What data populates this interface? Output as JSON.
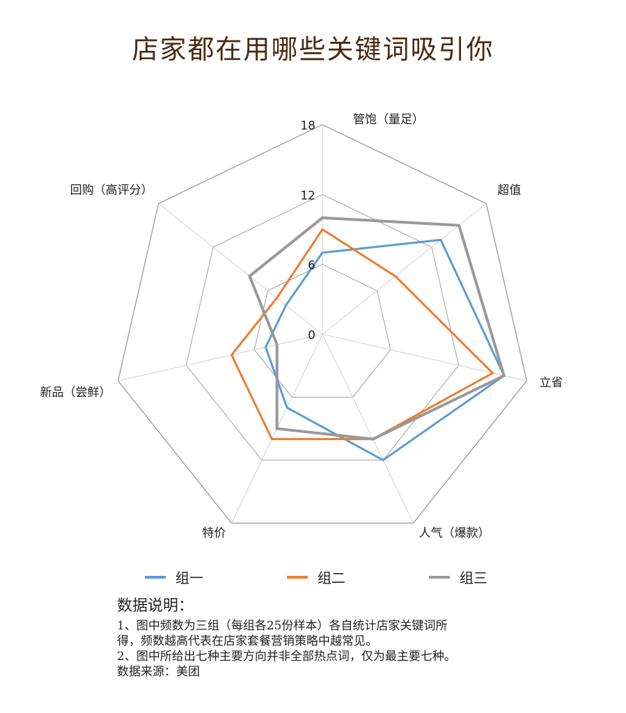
{
  "title": "店家都在用哪些关键词吸引你",
  "chart_data": {
    "type": "radar",
    "axes": [
      "管饱（量足）",
      "超值",
      "立省",
      "人气（爆款）",
      "特价",
      "新品（尝鲜）",
      "回购（高评分）"
    ],
    "rlim": [
      0,
      18
    ],
    "ticks": [
      "0",
      "6",
      "12",
      "18"
    ],
    "tick_values": [
      0,
      6,
      12,
      18
    ],
    "grid": true,
    "legend": "bottom",
    "series": [
      {
        "name": "组一",
        "color": "#5b9bd5",
        "values": [
          7,
          13,
          16,
          12,
          7,
          5,
          4
        ]
      },
      {
        "name": "组二",
        "color": "#ed7d31",
        "values": [
          9,
          8,
          15,
          10,
          10,
          8,
          5
        ]
      },
      {
        "name": "组三",
        "color": "#999999",
        "values": [
          10,
          15,
          16,
          10,
          9,
          4,
          8
        ]
      }
    ]
  },
  "notes": {
    "heading": "数据说明：",
    "line1": "1、图中频数为三组（每组各25份样本）各自统计店家关键词所",
    "line2": "得，频数越高代表在店家套餐营销策略中越常见。",
    "line3": "2、图中所给出七种主要方向并非全部热点词，仅为最主要七种。",
    "line4": "数据来源：美团"
  }
}
